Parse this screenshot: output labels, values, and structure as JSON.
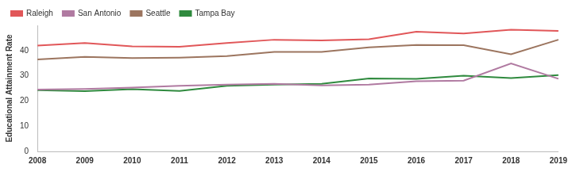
{
  "chart_data": {
    "type": "line",
    "y_label": "Educational Attainment Rate",
    "categories": [
      "2008",
      "2009",
      "2010",
      "2011",
      "2012",
      "2013",
      "2014",
      "2015",
      "2016",
      "2017",
      "2018",
      "2019"
    ],
    "series": [
      {
        "name": "Raleigh",
        "color": "#e15759",
        "values": [
          42,
          43,
          41.7,
          41.5,
          43,
          44.3,
          44,
          44.5,
          47.5,
          46.8,
          48.3,
          47.8
        ]
      },
      {
        "name": "San Antonio",
        "color": "#b07aa1",
        "values": [
          24.5,
          24.8,
          25.3,
          26,
          26.5,
          26.8,
          26.2,
          26.5,
          27.8,
          28.1,
          34.9,
          28.8
        ]
      },
      {
        "name": "Seattle",
        "color": "#9c755f",
        "values": [
          36.5,
          37.5,
          37,
          37.2,
          37.8,
          39.5,
          39.5,
          41.3,
          42.2,
          42.1,
          38.5,
          44.3
        ]
      },
      {
        "name": "Tampa Bay",
        "color": "#2f8a3e",
        "values": [
          24.3,
          23.9,
          24.7,
          24,
          26,
          26.5,
          26.8,
          28.9,
          28.8,
          30,
          29.1,
          30.3
        ]
      }
    ],
    "ylim": [
      0,
      50
    ],
    "yticks": [
      0,
      10,
      20,
      30,
      40
    ],
    "grid": false,
    "legend": "top-left"
  }
}
